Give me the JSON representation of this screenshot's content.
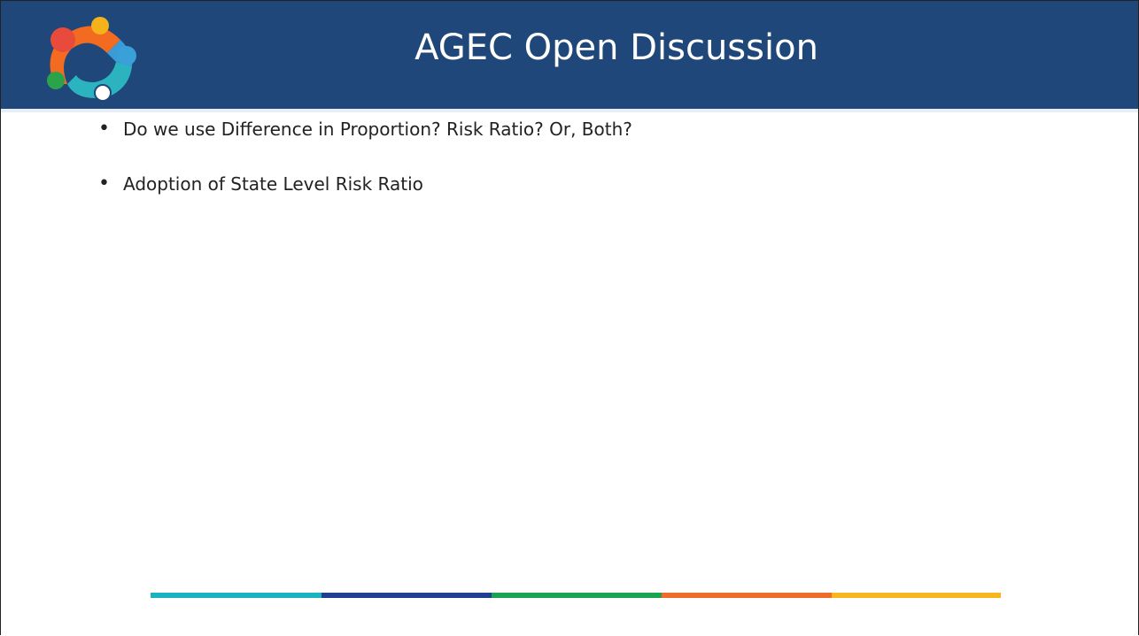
{
  "header": {
    "title": "AGEC Open Discussion"
  },
  "bullets": [
    "Do we use Difference in Proportion? Risk Ratio? Or, Both?",
    "Adoption of State Level Risk Ratio"
  ]
}
